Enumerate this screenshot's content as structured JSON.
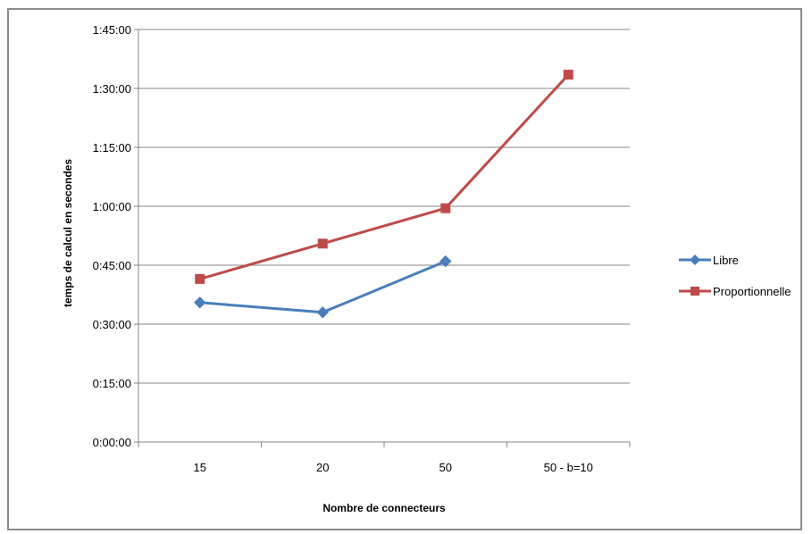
{
  "chart_data": {
    "type": "line",
    "categories": [
      "15",
      "20",
      "50",
      "50 - b=10"
    ],
    "xlabel": "Nombre de connecteurs",
    "ylabel": "temps de calcul en secondes",
    "y_ticks": [
      "0:00:00",
      "0:15:00",
      "0:30:00",
      "0:45:00",
      "1:00:00",
      "1:15:00",
      "1:30:00",
      "1:45:00"
    ],
    "ylim": [
      0,
      105
    ],
    "y_unit": "minutes",
    "grid": true,
    "legend_position": "right",
    "series": [
      {
        "name": "Libre",
        "color": "#4a7ebb",
        "marker": "diamond",
        "values": [
          35.5,
          33,
          46,
          null
        ]
      },
      {
        "name": "Proportionnelle",
        "color": "#be4b48",
        "marker": "square",
        "values": [
          41.5,
          50.5,
          59.5,
          93.5
        ]
      }
    ]
  }
}
